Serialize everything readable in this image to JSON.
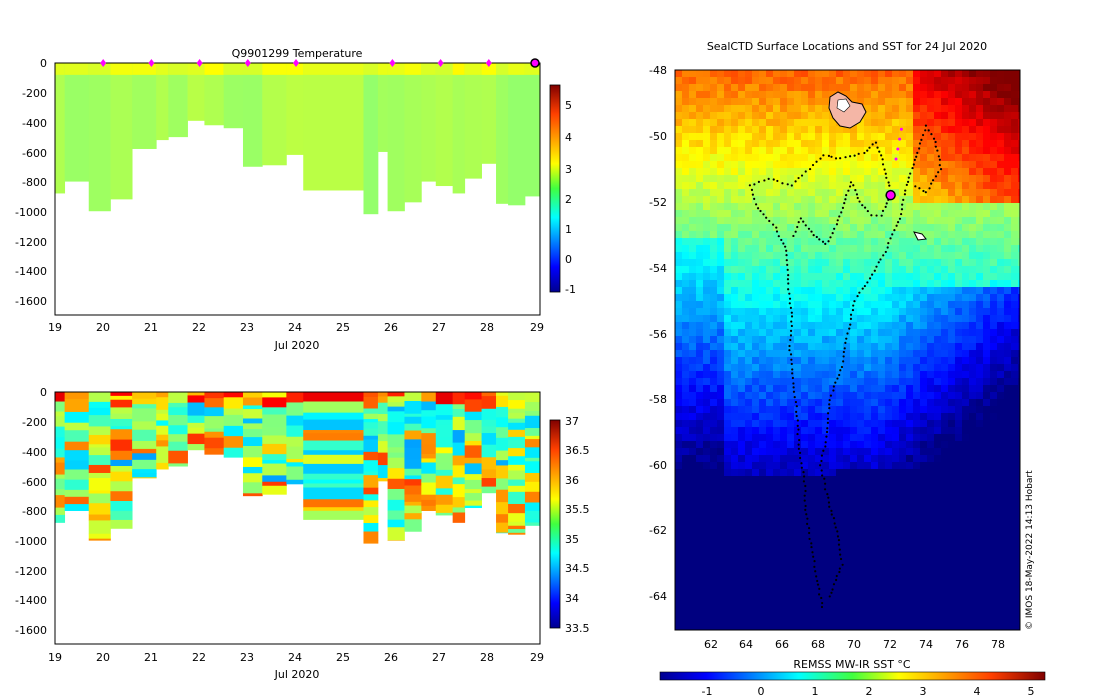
{
  "chart_data": [
    {
      "type": "heatmap",
      "title": "Q9901299  Temperature",
      "xlabel": "Jul 2020",
      "ylabel": "",
      "x_ticks": [
        "19",
        "20",
        "21",
        "22",
        "23",
        "24",
        "25",
        "26",
        "27",
        "28",
        "29"
      ],
      "xlim": [
        19,
        29.05
      ],
      "y_ticks": [
        "0",
        "-200",
        "-400",
        "-600",
        "-800",
        "-1000",
        "-1200",
        "-1400",
        "-1600"
      ],
      "ylim": [
        -1700,
        0
      ],
      "colorbar": {
        "ticks": [
          "-1",
          "0",
          "1",
          "2",
          "3",
          "4",
          "5"
        ],
        "range": [
          -1,
          5.8
        ]
      },
      "data_gap": [
        24.75,
        25.4
      ],
      "profile_day": [
        19,
        19.2,
        19.7,
        20.15,
        20.6,
        21.1,
        21.35,
        21.75,
        22.1,
        22.5,
        22.9,
        23.3,
        23.8,
        24.15,
        25.4,
        25.7,
        25.9,
        26.25,
        26.6,
        26.9,
        27.25,
        27.5,
        27.85,
        28.15,
        28.4,
        28.75
      ],
      "profile_max_depth": [
        880,
        800,
        1000,
        920,
        580,
        520,
        500,
        390,
        420,
        440,
        700,
        690,
        620,
        860,
        1020,
        600,
        1000,
        940,
        800,
        830,
        880,
        780,
        680,
        950,
        960,
        900
      ],
      "markers_day": [
        20,
        21,
        22,
        23,
        24,
        26,
        27,
        28,
        29
      ]
    },
    {
      "type": "heatmap",
      "title": "",
      "xlabel": "Jul 2020",
      "ylabel": "",
      "x_ticks": [
        "19",
        "20",
        "21",
        "22",
        "23",
        "24",
        "25",
        "26",
        "27",
        "28",
        "29"
      ],
      "xlim": [
        19,
        29.05
      ],
      "y_ticks": [
        "0",
        "-200",
        "-400",
        "-600",
        "-800",
        "-1000",
        "-1200",
        "-1400",
        "-1600"
      ],
      "ylim": [
        -1700,
        0
      ],
      "colorbar": {
        "ticks": [
          "33.5",
          "34",
          "34.5",
          "35",
          "35.5",
          "36",
          "36.5",
          "37"
        ],
        "range": [
          33.5,
          37
        ]
      },
      "data_gap": [
        24.75,
        25.4
      ]
    },
    {
      "type": "heatmap",
      "title": "SealCTD Surface Locations and SST for 24 Jul 2020",
      "xlabel": "",
      "ylabel": "",
      "x_ticks": [
        "62",
        "64",
        "66",
        "68",
        "70",
        "72",
        "74",
        "76",
        "78"
      ],
      "xlim": [
        60,
        79.2
      ],
      "y_ticks": [
        "-48",
        "-50",
        "-52",
        "-54",
        "-56",
        "-58",
        "-60",
        "-62",
        "-64"
      ],
      "ylim": [
        -65,
        -48
      ],
      "colorbar": {
        "label": "REMSS MW-IR SST °C",
        "ticks": [
          "-1",
          "0",
          "1",
          "2",
          "3",
          "4",
          "5"
        ],
        "range": [
          -1.8,
          5.3
        ]
      },
      "current_location": [
        72.0,
        -51.8
      ],
      "credit": "© IMOS 18-May-2022 14:13 Hobart"
    }
  ],
  "colors": {
    "jet": [
      "#00008f",
      "#0000ff",
      "#0080ff",
      "#00ffff",
      "#80ff80",
      "#ffff00",
      "#ff8000",
      "#ff0000",
      "#800000"
    ],
    "marker": "#ff00ff"
  }
}
